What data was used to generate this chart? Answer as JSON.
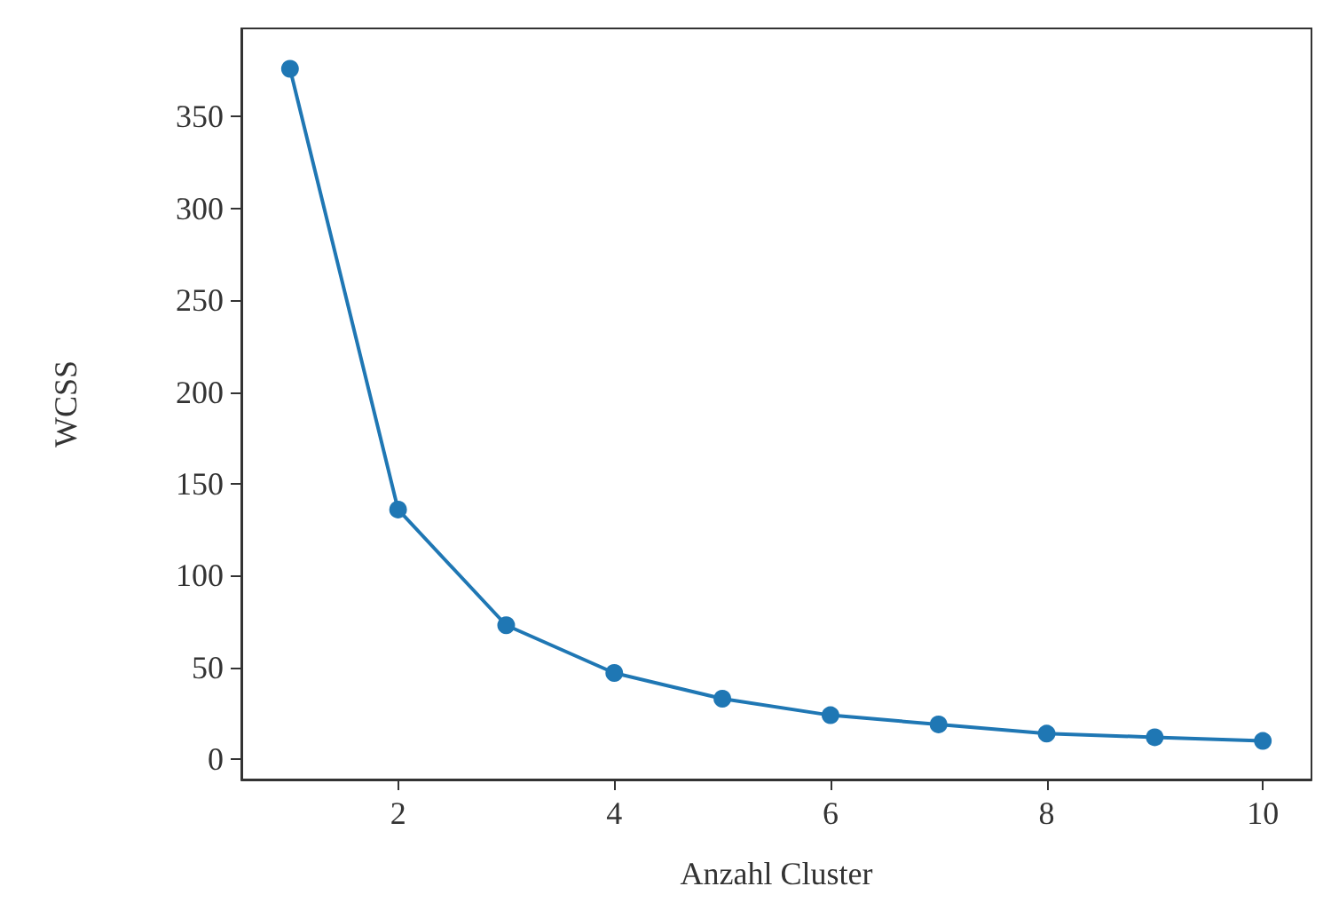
{
  "chart_data": {
    "type": "line",
    "xlabel": "Anzahl Cluster",
    "ylabel": "WCSS",
    "x": [
      1,
      2,
      3,
      4,
      5,
      6,
      7,
      8,
      9,
      10
    ],
    "series": [
      {
        "color": "#1f77b4",
        "values": [
          376,
          136,
          73,
          47,
          33,
          24,
          19,
          14,
          12,
          10
        ]
      }
    ],
    "xlim": [
      0.55,
      10.45
    ],
    "xticks": [
      2,
      4,
      6,
      8,
      10
    ],
    "ylim": [
      -11,
      398
    ],
    "yticks": [
      0,
      50,
      100,
      150,
      200,
      250,
      300,
      350
    ],
    "grid": false,
    "marker": "circle",
    "line_style": "solid"
  }
}
